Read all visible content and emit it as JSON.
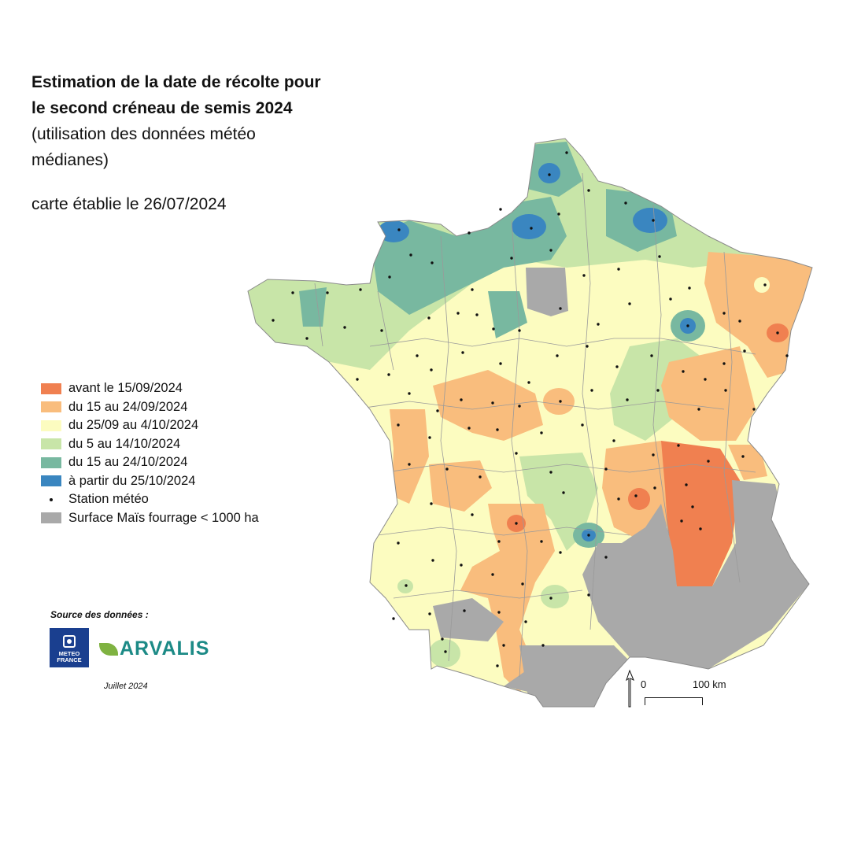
{
  "title": {
    "line1": "Estimation de la date de récolte pour",
    "line2": "le second créneau de semis 2024",
    "subtitle1": "(utilisation des données météo",
    "subtitle2": "médianes)",
    "date": "carte établie le 26/07/2024"
  },
  "legend": {
    "items": [
      {
        "label": "avant le 15/09/2024",
        "color": "#f08050"
      },
      {
        "label": "du 15 au 24/09/2024",
        "color": "#f9bd7d"
      },
      {
        "label": "du 25/09 au 4/10/2024",
        "color": "#fcfcc0"
      },
      {
        "label": "du 5 au 14/10/2024",
        "color": "#c8e5a8"
      },
      {
        "label": "du 15 au 24/10/2024",
        "color": "#78b8a0"
      },
      {
        "label": "à partir du 25/10/2024",
        "color": "#3a86c0"
      }
    ],
    "station_label": "Station météo",
    "surface_label": "Surface Maïs fourrage < 1000 ha",
    "surface_color": "#a9a9a9"
  },
  "source": {
    "label": "Source des données :",
    "meteo_line1": "METEO",
    "meteo_line2": "FRANCE",
    "arvalis": "ARVALIS",
    "month": "Juillet 2024"
  },
  "scale": {
    "zero": "0",
    "distance": "100 km"
  }
}
